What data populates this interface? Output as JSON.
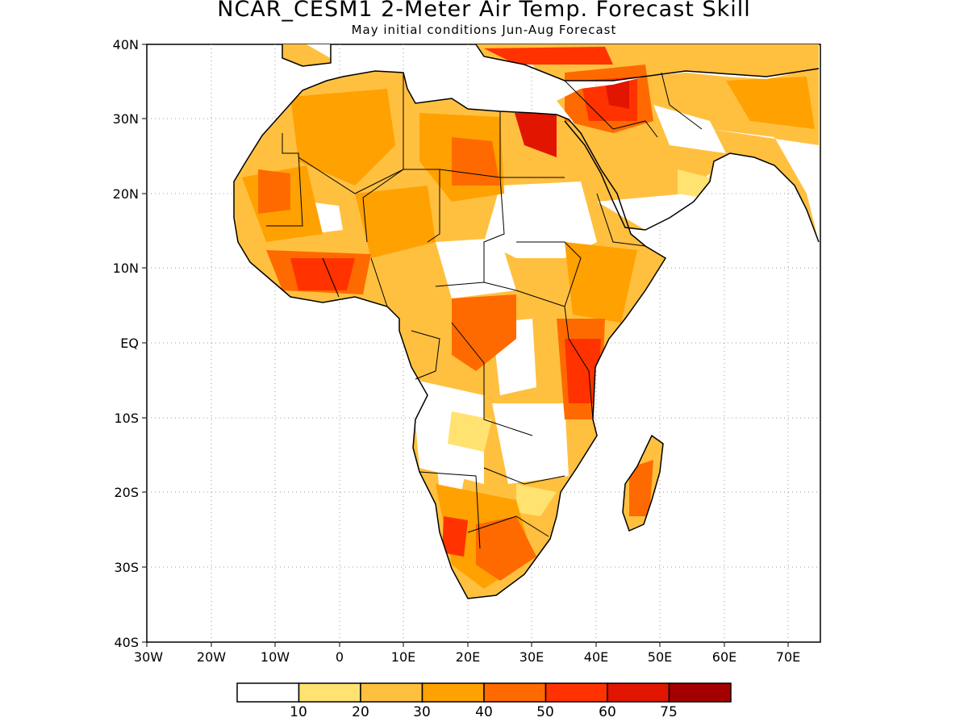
{
  "map": {
    "title": "NCAR_CESM1 2-Meter Air Temp. Forecast Skill",
    "subtitle": "May initial conditions  Jun-Aug Forecast",
    "lat_labels": [
      "40N",
      "30N",
      "20N",
      "10N",
      "EQ",
      "10S",
      "20S",
      "30S",
      "40S"
    ],
    "lon_labels": [
      "30W",
      "20W",
      "10W",
      "0",
      "10E",
      "20E",
      "30E",
      "40E",
      "50E",
      "60E",
      "70E"
    ],
    "extent": {
      "lon": [
        -30,
        75
      ],
      "lat": [
        -40,
        40
      ]
    },
    "grid": true,
    "colorbar": {
      "labels": [
        "10",
        "20",
        "30",
        "40",
        "50",
        "60",
        "75"
      ],
      "colors": [
        "#ffffff",
        "#ffe270",
        "#ffc040",
        "#ffa100",
        "#ff6a00",
        "#ff3200",
        "#e11500",
        "#a50000"
      ]
    }
  }
}
